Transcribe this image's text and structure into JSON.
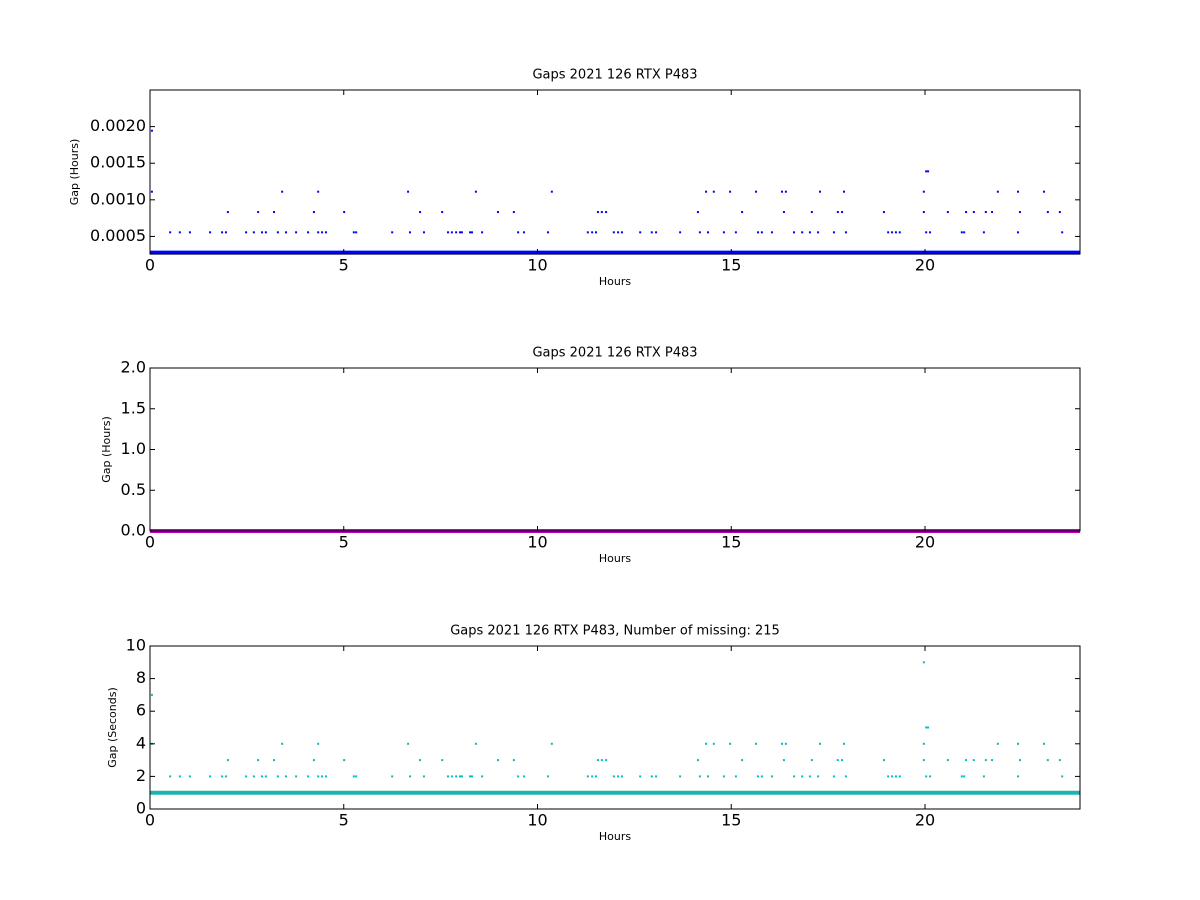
{
  "chart_data": [
    {
      "type": "scatter",
      "title": "Gaps 2021 126 RTX  P483",
      "xlabel": "Hours",
      "ylabel": "Gap (Hours)",
      "xlim": [
        0,
        24
      ],
      "ylim": [
        0.00026,
        0.0025
      ],
      "xticks": [
        0,
        5,
        10,
        15,
        20
      ],
      "yticks": [
        0.0005,
        {
          "value": 0.001,
          "label": "0.0010"
        },
        0.0015,
        {
          "value": 0.002,
          "label": "0.0020"
        }
      ],
      "series": [
        {
          "mode": "line",
          "color": "#0000ff",
          "x": [
            0,
            24
          ],
          "values": [
            0.000278,
            0.000278
          ]
        },
        {
          "color": "#0000ff",
          "x": [
            0.52,
            0.77,
            1.03,
            1.55,
            1.86,
            1.96,
            2.48,
            2.68,
            2.89,
            2.99,
            3.3,
            3.51,
            3.77,
            4.08,
            4.34,
            4.44,
            4.54,
            5.26,
            5.32,
            6.25,
            6.71,
            7.07,
            7.69,
            7.79,
            7.9,
            8.0,
            8.05,
            8.26,
            8.31,
            8.57,
            9.5,
            9.65,
            10.27,
            11.3,
            11.41,
            11.51,
            11.97,
            12.08,
            12.18,
            12.65,
            12.95,
            13.06,
            13.68,
            14.19,
            14.4,
            14.81,
            15.12,
            15.69,
            15.79,
            16.05,
            16.62,
            16.83,
            17.03,
            17.24,
            17.65,
            17.96,
            19.05,
            19.15,
            19.25,
            19.35,
            20.03,
            20.13,
            20.95,
            21.01,
            21.52,
            22.4,
            23.54
          ],
          "values": [
            0.000556,
            0.000556,
            0.000556,
            0.000556,
            0.000556,
            0.000556,
            0.000556,
            0.000556,
            0.000556,
            0.000556,
            0.000556,
            0.000556,
            0.000556,
            0.000556,
            0.000556,
            0.000556,
            0.000556,
            0.000556,
            0.000556,
            0.000556,
            0.000556,
            0.000556,
            0.000556,
            0.000556,
            0.000556,
            0.000556,
            0.000556,
            0.000556,
            0.000556,
            0.000556,
            0.000556,
            0.000556,
            0.000556,
            0.000556,
            0.000556,
            0.000556,
            0.000556,
            0.000556,
            0.000556,
            0.000556,
            0.000556,
            0.000556,
            0.000556,
            0.000556,
            0.000556,
            0.000556,
            0.000556,
            0.000556,
            0.000556,
            0.000556,
            0.000556,
            0.000556,
            0.000556,
            0.000556,
            0.000556,
            0.000556,
            0.000556,
            0.000556,
            0.000556,
            0.000556,
            0.000556,
            0.000556,
            0.000556,
            0.000556,
            0.000556,
            0.000556,
            0.000556
          ]
        },
        {
          "color": "#0000ff",
          "x": [
            2.01,
            2.79,
            3.2,
            4.23,
            5.01,
            6.97,
            7.54,
            8.98,
            9.39,
            11.56,
            11.66,
            11.77,
            14.14,
            15.28,
            16.36,
            17.08,
            17.75,
            17.86,
            18.94,
            19.97,
            20.59,
            21.06,
            21.26,
            21.57,
            21.73,
            22.45,
            23.17,
            23.48
          ],
          "values": [
            0.000833,
            0.000833,
            0.000833,
            0.000833,
            0.000833,
            0.000833,
            0.000833,
            0.000833,
            0.000833,
            0.000833,
            0.000833,
            0.000833,
            0.000833,
            0.000833,
            0.000833,
            0.000833,
            0.000833,
            0.000833,
            0.000833,
            0.000833,
            0.000833,
            0.000833,
            0.000833,
            0.000833,
            0.000833,
            0.000833,
            0.000833,
            0.000833
          ]
        },
        {
          "color": "#0000ff",
          "x": [
            0.05,
            3.41,
            4.34,
            6.66,
            8.41,
            10.37,
            14.35,
            14.55,
            14.97,
            15.64,
            16.31,
            16.41,
            17.29,
            17.91,
            19.97,
            21.88,
            22.4,
            23.07
          ],
          "values": [
            0.001111,
            0.001111,
            0.001111,
            0.001111,
            0.001111,
            0.001111,
            0.001111,
            0.001111,
            0.001111,
            0.001111,
            0.001111,
            0.001111,
            0.001111,
            0.001111,
            0.001111,
            0.001111,
            0.001111,
            0.001111
          ]
        },
        {
          "color": "#0000ff",
          "x": [
            20.03,
            20.08
          ],
          "values": [
            0.001389,
            0.001389
          ]
        },
        {
          "color": "#0000ff",
          "x": [
            0.05
          ],
          "values": [
            0.001944
          ]
        }
      ]
    },
    {
      "type": "scatter",
      "title": "Gaps 2021 126 RTX  P483",
      "xlabel": "Hours",
      "ylabel": "Gap (Hours)",
      "xlim": [
        0,
        24
      ],
      "ylim": [
        0,
        2
      ],
      "xticks": [
        0,
        5,
        10,
        15,
        20
      ],
      "yticks": [
        {
          "value": 0,
          "label": "0.0"
        },
        0.5,
        {
          "value": 1,
          "label": "1.0"
        },
        1.5,
        {
          "value": 2,
          "label": "2.0"
        }
      ],
      "series": [
        {
          "mode": "line",
          "color": "#bf00bf",
          "x": [
            0,
            24
          ],
          "values": [
            0.000278,
            0.000278
          ]
        }
      ]
    },
    {
      "type": "scatter",
      "title": "Gaps 2021 126 RTX  P483, Number of missing: 215",
      "xlabel": "Hours",
      "ylabel": "Gap (Seconds)",
      "xlim": [
        0,
        24
      ],
      "ylim": [
        0,
        10
      ],
      "xticks": [
        0,
        5,
        10,
        15,
        20
      ],
      "yticks": [
        0,
        2,
        4,
        6,
        8,
        10
      ],
      "series": [
        {
          "mode": "line",
          "color": "#1cb4b0",
          "x": [
            0,
            24
          ],
          "values": [
            1,
            1
          ]
        },
        {
          "color": "#00bfbf",
          "x": [
            0.52,
            0.77,
            1.03,
            1.55,
            1.86,
            1.96,
            2.48,
            2.68,
            2.89,
            2.99,
            3.3,
            3.51,
            3.77,
            4.08,
            4.34,
            4.44,
            4.54,
            5.26,
            5.32,
            6.25,
            6.71,
            7.07,
            7.69,
            7.79,
            7.9,
            8.0,
            8.05,
            8.26,
            8.31,
            8.57,
            9.5,
            9.65,
            10.27,
            11.3,
            11.41,
            11.51,
            11.97,
            12.08,
            12.18,
            12.65,
            12.95,
            13.06,
            13.68,
            14.19,
            14.4,
            14.81,
            15.12,
            15.69,
            15.79,
            16.05,
            16.62,
            16.83,
            17.03,
            17.24,
            17.65,
            17.96,
            19.05,
            19.15,
            19.25,
            19.35,
            20.03,
            20.13,
            20.95,
            21.01,
            21.52,
            22.4,
            23.54
          ],
          "values": [
            2,
            2,
            2,
            2,
            2,
            2,
            2,
            2,
            2,
            2,
            2,
            2,
            2,
            2,
            2,
            2,
            2,
            2,
            2,
            2,
            2,
            2,
            2,
            2,
            2,
            2,
            2,
            2,
            2,
            2,
            2,
            2,
            2,
            2,
            2,
            2,
            2,
            2,
            2,
            2,
            2,
            2,
            2,
            2,
            2,
            2,
            2,
            2,
            2,
            2,
            2,
            2,
            2,
            2,
            2,
            2,
            2,
            2,
            2,
            2,
            2,
            2,
            2,
            2,
            2,
            2,
            2
          ]
        },
        {
          "color": "#00bfbf",
          "x": [
            2.01,
            2.79,
            3.2,
            4.23,
            5.01,
            6.97,
            7.54,
            8.98,
            9.39,
            11.56,
            11.66,
            11.77,
            14.14,
            15.28,
            16.36,
            17.08,
            17.75,
            17.86,
            18.94,
            19.97,
            20.59,
            21.06,
            21.26,
            21.57,
            21.73,
            22.45,
            23.17,
            23.48
          ],
          "values": [
            3,
            3,
            3,
            3,
            3,
            3,
            3,
            3,
            3,
            3,
            3,
            3,
            3,
            3,
            3,
            3,
            3,
            3,
            3,
            3,
            3,
            3,
            3,
            3,
            3,
            3,
            3,
            3
          ]
        },
        {
          "color": "#00bfbf",
          "x": [
            0.05,
            3.41,
            4.34,
            6.66,
            8.41,
            10.37,
            14.35,
            14.55,
            14.97,
            15.64,
            16.31,
            16.41,
            17.29,
            17.91,
            19.97,
            21.88,
            22.4,
            23.07
          ],
          "values": [
            4,
            4,
            4,
            4,
            4,
            4,
            4,
            4,
            4,
            4,
            4,
            4,
            4,
            4,
            4,
            4,
            4,
            4
          ]
        },
        {
          "color": "#00bfbf",
          "x": [
            20.03,
            20.08
          ],
          "values": [
            5,
            5
          ]
        },
        {
          "color": "#00bfbf",
          "x": [
            0.05
          ],
          "values": [
            7
          ]
        },
        {
          "color": "#00bfbf",
          "x": [
            19.97
          ],
          "values": [
            9
          ]
        }
      ]
    }
  ]
}
